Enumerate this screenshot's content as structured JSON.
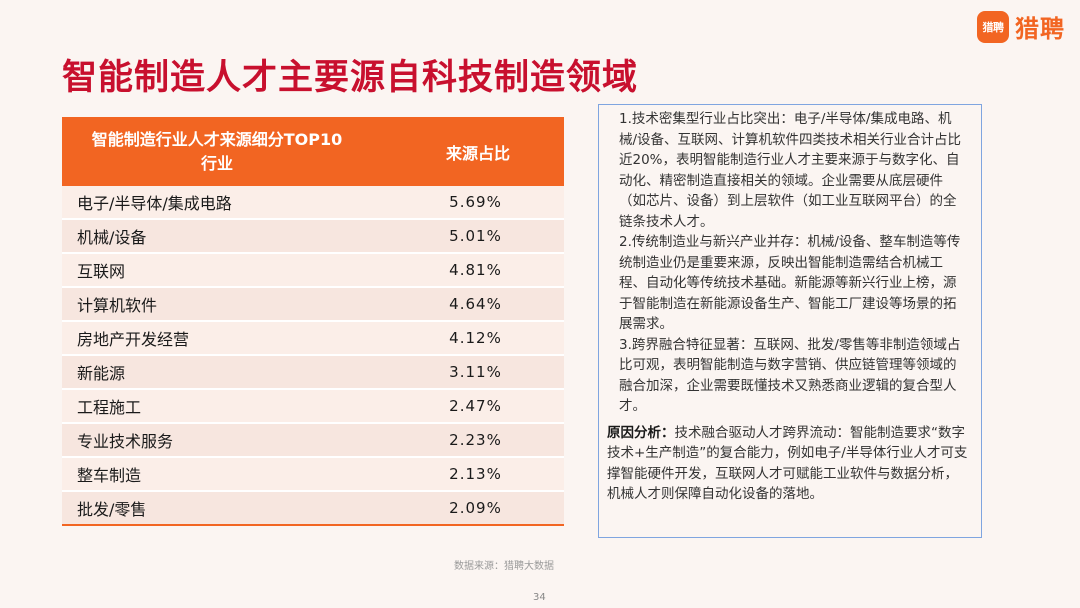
{
  "logo": {
    "badge": "猎聘",
    "text": "猎聘"
  },
  "title": "智能制造人才主要源自科技制造领域",
  "table": {
    "header_cat_line1": "智能制造行业人才来源细分TOP10",
    "header_cat_line2": "行业",
    "header_val": "来源占比",
    "rows": [
      {
        "category": "电子/半导体/集成电路",
        "value": "5.69%"
      },
      {
        "category": "机械/设备",
        "value": "5.01%"
      },
      {
        "category": "互联网",
        "value": "4.81%"
      },
      {
        "category": "计算机软件",
        "value": "4.64%"
      },
      {
        "category": "房地产开发经营",
        "value": "4.12%"
      },
      {
        "category": "新能源",
        "value": "3.11%"
      },
      {
        "category": "工程施工",
        "value": "2.47%"
      },
      {
        "category": "专业技术服务",
        "value": "2.23%"
      },
      {
        "category": "整车制造",
        "value": "2.13%"
      },
      {
        "category": "批发/零售",
        "value": "2.09%"
      }
    ]
  },
  "source": "数据来源：猎聘大数据",
  "analysis": {
    "point1": "1.技术密集型行业占比突出：电子/半导体/集成电路、机械/设备、互联网、计算机软件四类技术相关行业合计占比近20%，表明智能制造行业人才主要来源于与数字化、自动化、精密制造直接相关的领域。企业需要从底层硬件（如芯片、设备）到上层软件（如工业互联网平台）的全链条技术人才。",
    "point2": "2.传统制造业与新兴产业并存：机械/设备、整车制造等传统制造业仍是重要来源，反映出智能制造需结合机械工程、自动化等传统技术基础。新能源等新兴行业上榜，源于智能制造在新能源设备生产、智能工厂建设等场景的拓展需求。",
    "point3": "3.跨界融合特征显著：互联网、批发/零售等非制造领域占比可观，表明智能制造与数字营销、供应链管理等领域的融合加深，企业需要既懂技术又熟悉商业逻辑的复合型人才。",
    "reason_label": "原因分析：",
    "reason_text": "技术融合驱动人才跨界流动：智能制造要求“数字技术+生产制造”的复合能力，例如电子/半导体行业人才可支撑智能硬件开发，互联网人才可赋能工业软件与数据分析，机械人才则保障自动化设备的落地。"
  },
  "page_number": "34"
}
